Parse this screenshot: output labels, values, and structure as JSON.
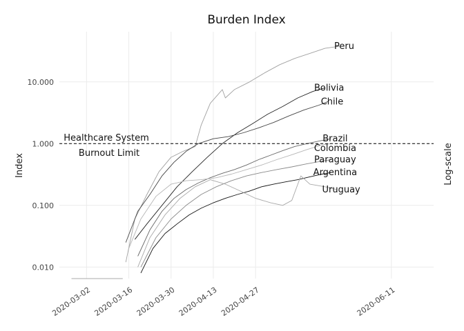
{
  "chart_data": {
    "type": "line",
    "title": "Burden Index",
    "ylabel": "Index",
    "secondary_ylabel": "Log-scale",
    "y_scale": "log10",
    "ylim": [
      0.0065,
      65
    ],
    "xlim": [
      "2020-02-22",
      "2020-06-25"
    ],
    "y_ticks": [
      0.01,
      0.1,
      1,
      10
    ],
    "y_tick_labels": [
      "0.010",
      "0.100",
      "1.000",
      "10.000"
    ],
    "x_ticks": [
      "2020-03-02",
      "2020-03-16",
      "2020-03-30",
      "2020-04-13",
      "2020-04-27",
      "2020-06-11"
    ],
    "grid": true,
    "reference_line": {
      "value": 1.0,
      "style": "dashed",
      "label_line1": "Healthcare System",
      "label_line2": "Burnout Limit"
    },
    "series": [
      {
        "name": "Peru",
        "color": "#a0a0a0",
        "points": [
          [
            "2020-03-15",
            0.012
          ],
          [
            "2020-03-18",
            0.06
          ],
          [
            "2020-03-22",
            0.15
          ],
          [
            "2020-03-26",
            0.35
          ],
          [
            "2020-03-30",
            0.6
          ],
          [
            "2020-04-03",
            0.75
          ],
          [
            "2020-04-07",
            0.9
          ],
          [
            "2020-04-09",
            2.0
          ],
          [
            "2020-04-12",
            4.5
          ],
          [
            "2020-04-16",
            7.5
          ],
          [
            "2020-04-17",
            5.5
          ],
          [
            "2020-04-20",
            7.5
          ],
          [
            "2020-04-25",
            10
          ],
          [
            "2020-04-30",
            14
          ],
          [
            "2020-05-05",
            19
          ],
          [
            "2020-05-10",
            24
          ],
          [
            "2020-05-15",
            29
          ],
          [
            "2020-05-20",
            35
          ],
          [
            "2020-05-25",
            38
          ]
        ]
      },
      {
        "name": "Bolivia",
        "color": "#222222",
        "points": [
          [
            "2020-03-18",
            0.028
          ],
          [
            "2020-03-22",
            0.05
          ],
          [
            "2020-03-27",
            0.1
          ],
          [
            "2020-04-01",
            0.2
          ],
          [
            "2020-04-06",
            0.35
          ],
          [
            "2020-04-11",
            0.6
          ],
          [
            "2020-04-16",
            1.0
          ],
          [
            "2020-04-21",
            1.5
          ],
          [
            "2020-04-26",
            2.1
          ],
          [
            "2020-05-01",
            3.0
          ],
          [
            "2020-05-06",
            4.0
          ],
          [
            "2020-05-11",
            5.5
          ],
          [
            "2020-05-16",
            7.0
          ],
          [
            "2020-05-20",
            8.0
          ]
        ]
      },
      {
        "name": "Chile",
        "color": "#444444",
        "points": [
          [
            "2020-03-15",
            0.025
          ],
          [
            "2020-03-19",
            0.08
          ],
          [
            "2020-03-23",
            0.15
          ],
          [
            "2020-03-27",
            0.3
          ],
          [
            "2020-03-31",
            0.5
          ],
          [
            "2020-04-04",
            0.75
          ],
          [
            "2020-04-08",
            1.0
          ],
          [
            "2020-04-13",
            1.2
          ],
          [
            "2020-04-18",
            1.3
          ],
          [
            "2020-04-23",
            1.5
          ],
          [
            "2020-04-28",
            1.8
          ],
          [
            "2020-05-03",
            2.2
          ],
          [
            "2020-05-08",
            2.8
          ],
          [
            "2020-05-13",
            3.5
          ],
          [
            "2020-05-18",
            4.2
          ],
          [
            "2020-05-21",
            4.8
          ]
        ]
      },
      {
        "name": "Brazil",
        "color": "#666666",
        "points": [
          [
            "2020-03-19",
            0.015
          ],
          [
            "2020-03-23",
            0.04
          ],
          [
            "2020-03-27",
            0.08
          ],
          [
            "2020-03-31",
            0.13
          ],
          [
            "2020-04-04",
            0.18
          ],
          [
            "2020-04-08",
            0.23
          ],
          [
            "2020-04-12",
            0.28
          ],
          [
            "2020-04-16",
            0.33
          ],
          [
            "2020-04-20",
            0.38
          ],
          [
            "2020-04-24",
            0.45
          ],
          [
            "2020-04-28",
            0.55
          ],
          [
            "2020-05-02",
            0.65
          ],
          [
            "2020-05-06",
            0.77
          ],
          [
            "2020-05-10",
            0.9
          ],
          [
            "2020-05-14",
            1.0
          ],
          [
            "2020-05-18",
            1.1
          ],
          [
            "2020-05-22",
            1.2
          ]
        ]
      },
      {
        "name": "Colombia",
        "color": "#b5b5b5",
        "points": [
          [
            "2020-03-16",
            0.02
          ],
          [
            "2020-03-20",
            0.06
          ],
          [
            "2020-03-25",
            0.14
          ],
          [
            "2020-03-30",
            0.22
          ],
          [
            "2020-04-04",
            0.25
          ],
          [
            "2020-04-09",
            0.26
          ],
          [
            "2020-04-14",
            0.28
          ],
          [
            "2020-04-19",
            0.32
          ],
          [
            "2020-04-24",
            0.38
          ],
          [
            "2020-04-29",
            0.45
          ],
          [
            "2020-05-04",
            0.55
          ],
          [
            "2020-05-09",
            0.66
          ],
          [
            "2020-05-14",
            0.8
          ],
          [
            "2020-05-19",
            0.95
          ],
          [
            "2020-05-22",
            1.0
          ]
        ]
      },
      {
        "name": "Paraguay",
        "color": "#888888",
        "points": [
          [
            "2020-03-20",
            0.01
          ],
          [
            "2020-03-25",
            0.03
          ],
          [
            "2020-03-30",
            0.06
          ],
          [
            "2020-04-04",
            0.1
          ],
          [
            "2020-04-09",
            0.15
          ],
          [
            "2020-04-14",
            0.2
          ],
          [
            "2020-04-19",
            0.25
          ],
          [
            "2020-04-24",
            0.3
          ],
          [
            "2020-04-29",
            0.34
          ],
          [
            "2020-05-04",
            0.38
          ],
          [
            "2020-05-09",
            0.42
          ],
          [
            "2020-05-14",
            0.47
          ],
          [
            "2020-05-19",
            0.52
          ],
          [
            "2020-05-22",
            0.55
          ]
        ]
      },
      {
        "name": "Argentina",
        "color": "#111111",
        "points": [
          [
            "2020-03-20",
            0.008
          ],
          [
            "2020-03-24",
            0.02
          ],
          [
            "2020-03-28",
            0.035
          ],
          [
            "2020-04-01",
            0.05
          ],
          [
            "2020-04-05",
            0.07
          ],
          [
            "2020-04-09",
            0.09
          ],
          [
            "2020-04-13",
            0.11
          ],
          [
            "2020-04-17",
            0.13
          ],
          [
            "2020-04-21",
            0.15
          ],
          [
            "2020-04-25",
            0.17
          ],
          [
            "2020-04-29",
            0.2
          ],
          [
            "2020-05-03",
            0.22
          ],
          [
            "2020-05-07",
            0.24
          ],
          [
            "2020-05-11",
            0.26
          ],
          [
            "2020-05-15",
            0.29
          ],
          [
            "2020-05-19",
            0.32
          ],
          [
            "2020-05-22",
            0.34
          ]
        ]
      },
      {
        "name": "Uruguay",
        "color": "#a8a8a8",
        "points": [
          [
            "2020-03-19",
            0.01
          ],
          [
            "2020-03-23",
            0.03
          ],
          [
            "2020-03-28",
            0.07
          ],
          [
            "2020-04-02",
            0.13
          ],
          [
            "2020-04-07",
            0.2
          ],
          [
            "2020-04-12",
            0.26
          ],
          [
            "2020-04-17",
            0.22
          ],
          [
            "2020-04-22",
            0.17
          ],
          [
            "2020-04-27",
            0.13
          ],
          [
            "2020-05-02",
            0.11
          ],
          [
            "2020-05-06",
            0.1
          ],
          [
            "2020-05-09",
            0.12
          ],
          [
            "2020-05-12",
            0.3
          ],
          [
            "2020-05-15",
            0.22
          ],
          [
            "2020-05-20",
            0.2
          ],
          [
            "2020-05-24",
            0.18
          ]
        ]
      }
    ],
    "baseline_segment": {
      "color": "#aaaaaa",
      "x": [
        "2020-02-26",
        "2020-03-14"
      ],
      "y": 0.0065
    }
  }
}
